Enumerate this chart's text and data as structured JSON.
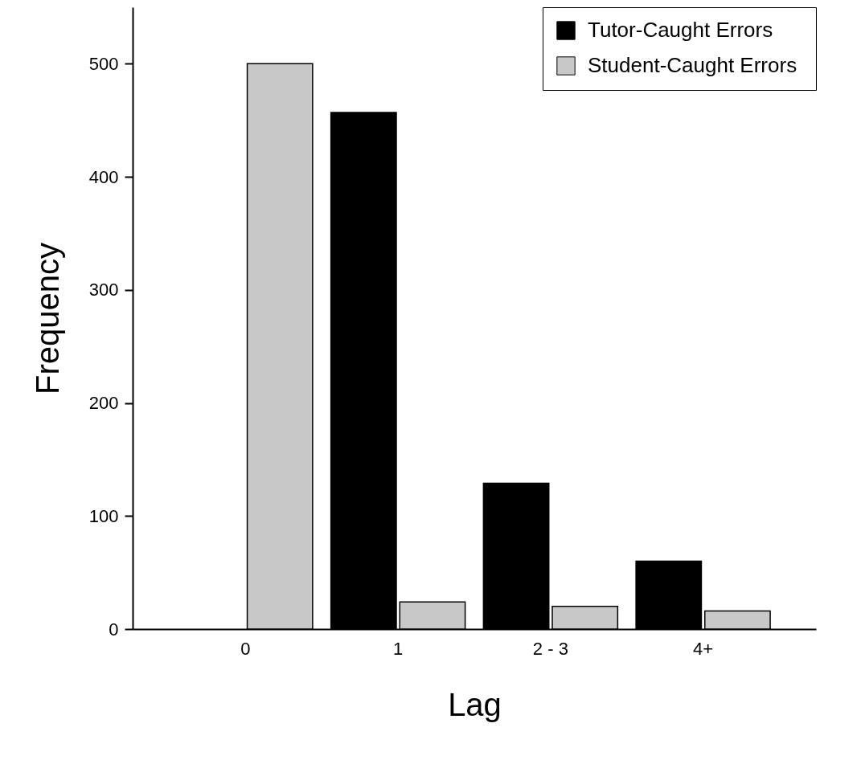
{
  "chart_data": {
    "type": "bar",
    "xlabel": "Lag",
    "ylabel": "Frequency",
    "categories": [
      "0",
      "1",
      "2 - 3",
      "4+"
    ],
    "series": [
      {
        "name": "Tutor-Caught  Errors",
        "color": "#000000",
        "values": [
          null,
          457,
          129,
          60
        ]
      },
      {
        "name": "Student-Caught  Errors",
        "color": "#c8c8c8",
        "values": [
          500,
          24,
          20,
          16
        ]
      }
    ],
    "ylim": [
      0,
      550
    ],
    "yticks": [
      0,
      100,
      200,
      300,
      400,
      500
    ],
    "grid": false,
    "legend": "top right"
  }
}
